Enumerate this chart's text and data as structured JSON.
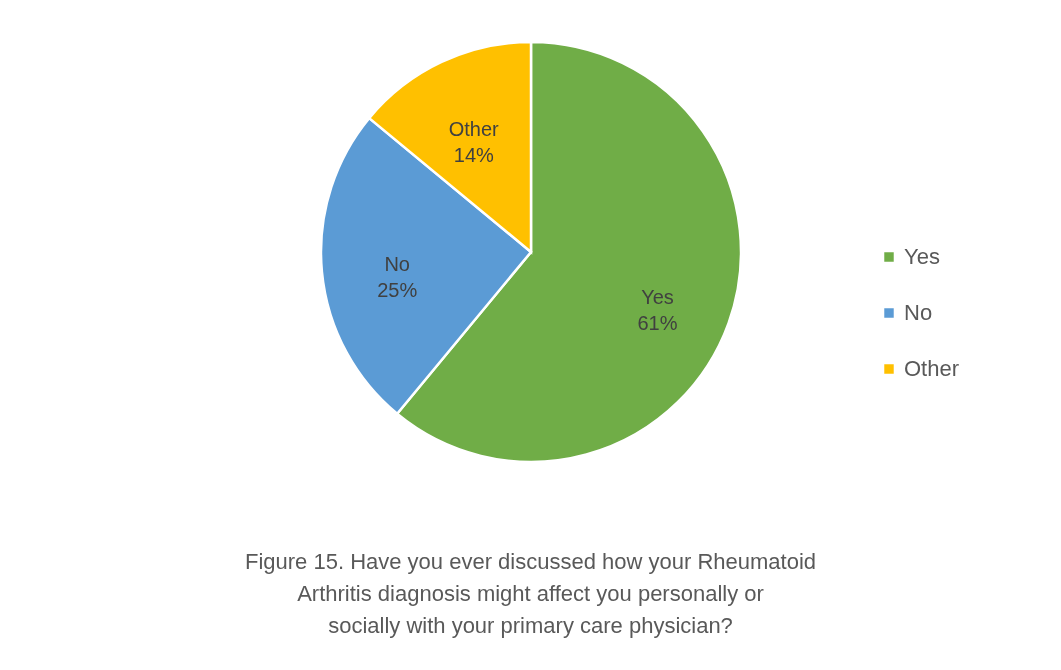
{
  "chart_data": {
    "type": "pie",
    "title": "Figure 15. Have you ever discussed how your Rheumatoid Arthritis diagnosis might affect you personally or socially with your primary care physician?",
    "categories": [
      "Yes",
      "No",
      "Other"
    ],
    "values": [
      61,
      25,
      14
    ],
    "value_labels": [
      "61%",
      "25%",
      "14%"
    ],
    "colors": [
      "#70ad47",
      "#5b9bd5",
      "#ffc000"
    ],
    "legend": "right"
  }
}
